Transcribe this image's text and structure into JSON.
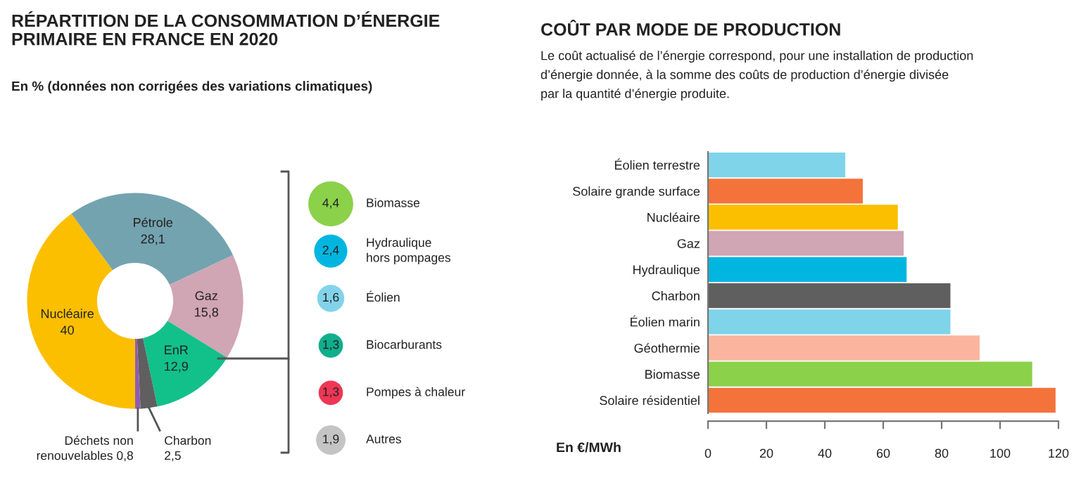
{
  "chart_data": [
    {
      "type": "donut",
      "title": "RÉPARTITION DE LA CONSOMMATION D’ÉNERGIE\nPRIMAIRE EN FRANCE EN 2020",
      "subtitle": "En % (données non corrigées des variations climatiques)",
      "categories": [
        "Nucléaire",
        "Pétrole",
        "Gaz",
        "EnR",
        "Charbon",
        "Déchets non\nrenouvelables"
      ],
      "values": [
        40,
        28.1,
        15.8,
        12.9,
        2.5,
        0.8
      ],
      "value_labels": [
        "40",
        "28,1",
        "15,8",
        "12,9",
        "2,5",
        "0,8"
      ],
      "colors": [
        "#fbbf00",
        "#74a3b0",
        "#d0a5b4",
        "#12c08a",
        "#5f5f5f",
        "#8e5db0"
      ]
    },
    {
      "type": "other",
      "categories": [
        "Biomasse",
        "Hydraulique\nhors pompages",
        "Éolien",
        "Biocarburants",
        "Pompes à chaleur",
        "Autres"
      ],
      "values": [
        4.4,
        2.4,
        1.6,
        1.3,
        1.3,
        1.9
      ],
      "value_labels": [
        "4,4",
        "2,4",
        "1,6",
        "1,3",
        "1,3",
        "1,9"
      ],
      "colors": [
        "#8bd14a",
        "#00b6e0",
        "#82d3ea",
        "#0fae8d",
        "#ef3655",
        "#c4c4c4"
      ]
    },
    {
      "type": "bar",
      "orientation": "horizontal",
      "title": "COÛT PAR MODE DE PRODUCTION",
      "subtitle": "Le coût actualisé de l’énergie correspond, pour une installation de production\nd’énergie donnée, à la somme des coûts de production d’énergie divisée\npar la quantité d’énergie produite.",
      "xlabel": "En €/MWh",
      "categories": [
        "Éolien terrestre",
        "Solaire grande surface",
        "Nucléaire",
        "Gaz",
        "Hydraulique",
        "Charbon",
        "Éolien marin",
        "Géothermie",
        "Biomasse",
        "Solaire résidentiel"
      ],
      "values": [
        47,
        53,
        65,
        67,
        68,
        83,
        83,
        93,
        111,
        119
      ],
      "colors": [
        "#7fd4ea",
        "#f4733b",
        "#fbbf00",
        "#d0a5b4",
        "#00b6e0",
        "#5f5f5f",
        "#7fd4ea",
        "#fbb59e",
        "#8bd14a",
        "#f4733b"
      ],
      "xlim": [
        0,
        120
      ],
      "xticks": [
        0,
        20,
        40,
        60,
        80,
        100,
        120
      ],
      "grid": false
    }
  ]
}
